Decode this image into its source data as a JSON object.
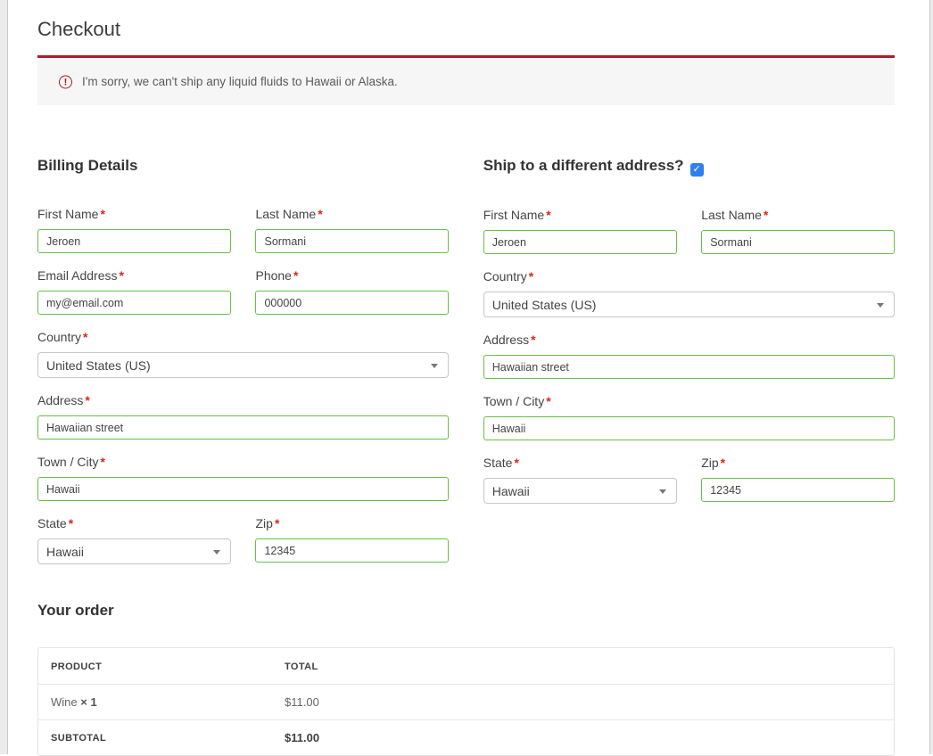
{
  "ui": {
    "required_marker": "*",
    "icons": {
      "alert": "!",
      "checkmark": "✓",
      "chevron_down": "▾"
    }
  },
  "colors": {
    "accent_red": "#b11a24",
    "validated_green": "#69bf45",
    "checkbox_blue": "#2f80ed",
    "notice_background": "#f6f6f6"
  },
  "page": {
    "title": "Checkout"
  },
  "notice": {
    "text": "I'm sorry, we can't ship any liquid fluids to Hawaii or Alaska."
  },
  "billing": {
    "heading": "Billing Details",
    "fields": {
      "first_name": {
        "label": "First Name",
        "value": "Jeroen"
      },
      "last_name": {
        "label": "Last Name",
        "value": "Sormani"
      },
      "email": {
        "label": "Email Address",
        "value": "my@email.com"
      },
      "phone": {
        "label": "Phone",
        "value": "000000"
      },
      "country": {
        "label": "Country",
        "value": "United States (US)"
      },
      "address": {
        "label": "Address",
        "value": "Hawaiian street"
      },
      "city": {
        "label": "Town / City",
        "value": "Hawaii"
      },
      "state": {
        "label": "State",
        "value": "Hawaii"
      },
      "zip": {
        "label": "Zip",
        "value": "12345"
      }
    }
  },
  "shipping": {
    "heading": "Ship to a different address?",
    "checkbox_checked": true,
    "fields": {
      "first_name": {
        "label": "First Name",
        "value": "Jeroen"
      },
      "last_name": {
        "label": "Last Name",
        "value": "Sormani"
      },
      "country": {
        "label": "Country",
        "value": "United States (US)"
      },
      "address": {
        "label": "Address",
        "value": "Hawaiian street"
      },
      "city": {
        "label": "Town / City",
        "value": "Hawaii"
      },
      "state": {
        "label": "State",
        "value": "Hawaii"
      },
      "zip": {
        "label": "Zip",
        "value": "12345"
      }
    }
  },
  "order": {
    "heading": "Your order",
    "columns": {
      "product": "Product",
      "total": "Total"
    },
    "items": [
      {
        "name": "Wine",
        "quantity": "× 1",
        "total": "$11.00"
      }
    ],
    "subtotal_label": "Subtotal",
    "subtotal_value": "$11.00"
  }
}
